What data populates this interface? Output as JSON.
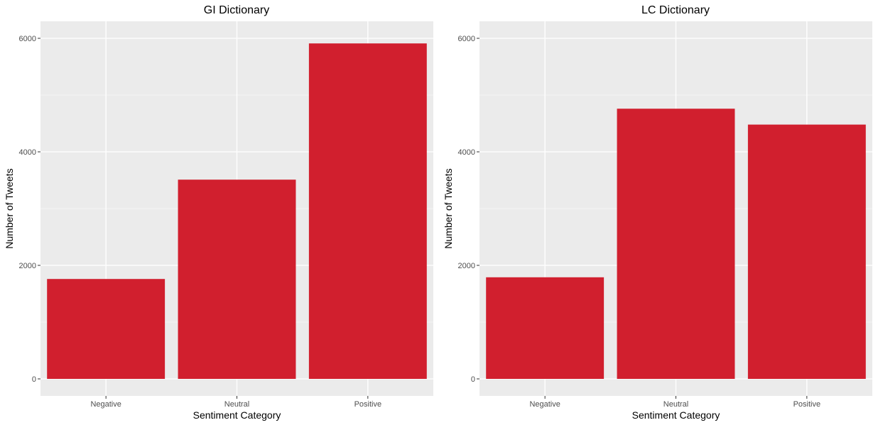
{
  "chart_data": [
    {
      "type": "bar",
      "title": "GI Dictionary",
      "xlabel": "Sentiment Category",
      "ylabel": "Number of Tweets",
      "categories": [
        "Negative",
        "Neutral",
        "Positive"
      ],
      "values": [
        1760,
        3510,
        5910
      ],
      "ylim": [
        -300,
        6300
      ],
      "yticks": [
        0,
        2000,
        4000,
        6000
      ],
      "ytick_labels": [
        "0",
        "2000",
        "4000",
        "6000"
      ],
      "grid": true,
      "legend": "none",
      "bar_color": "#D11F2E",
      "panel_background": "#EBEBEB",
      "grid_color": "#FFFFFF"
    },
    {
      "type": "bar",
      "title": "LC Dictionary",
      "xlabel": "Sentiment Category",
      "ylabel": "Number of Tweets",
      "categories": [
        "Negative",
        "Neutral",
        "Positive"
      ],
      "values": [
        1790,
        4760,
        4480
      ],
      "ylim": [
        -300,
        6300
      ],
      "yticks": [
        0,
        2000,
        4000,
        6000
      ],
      "ytick_labels": [
        "0",
        "2000",
        "4000",
        "6000"
      ],
      "grid": true,
      "legend": "none",
      "bar_color": "#D11F2E",
      "panel_background": "#EBEBEB",
      "grid_color": "#FFFFFF"
    }
  ]
}
